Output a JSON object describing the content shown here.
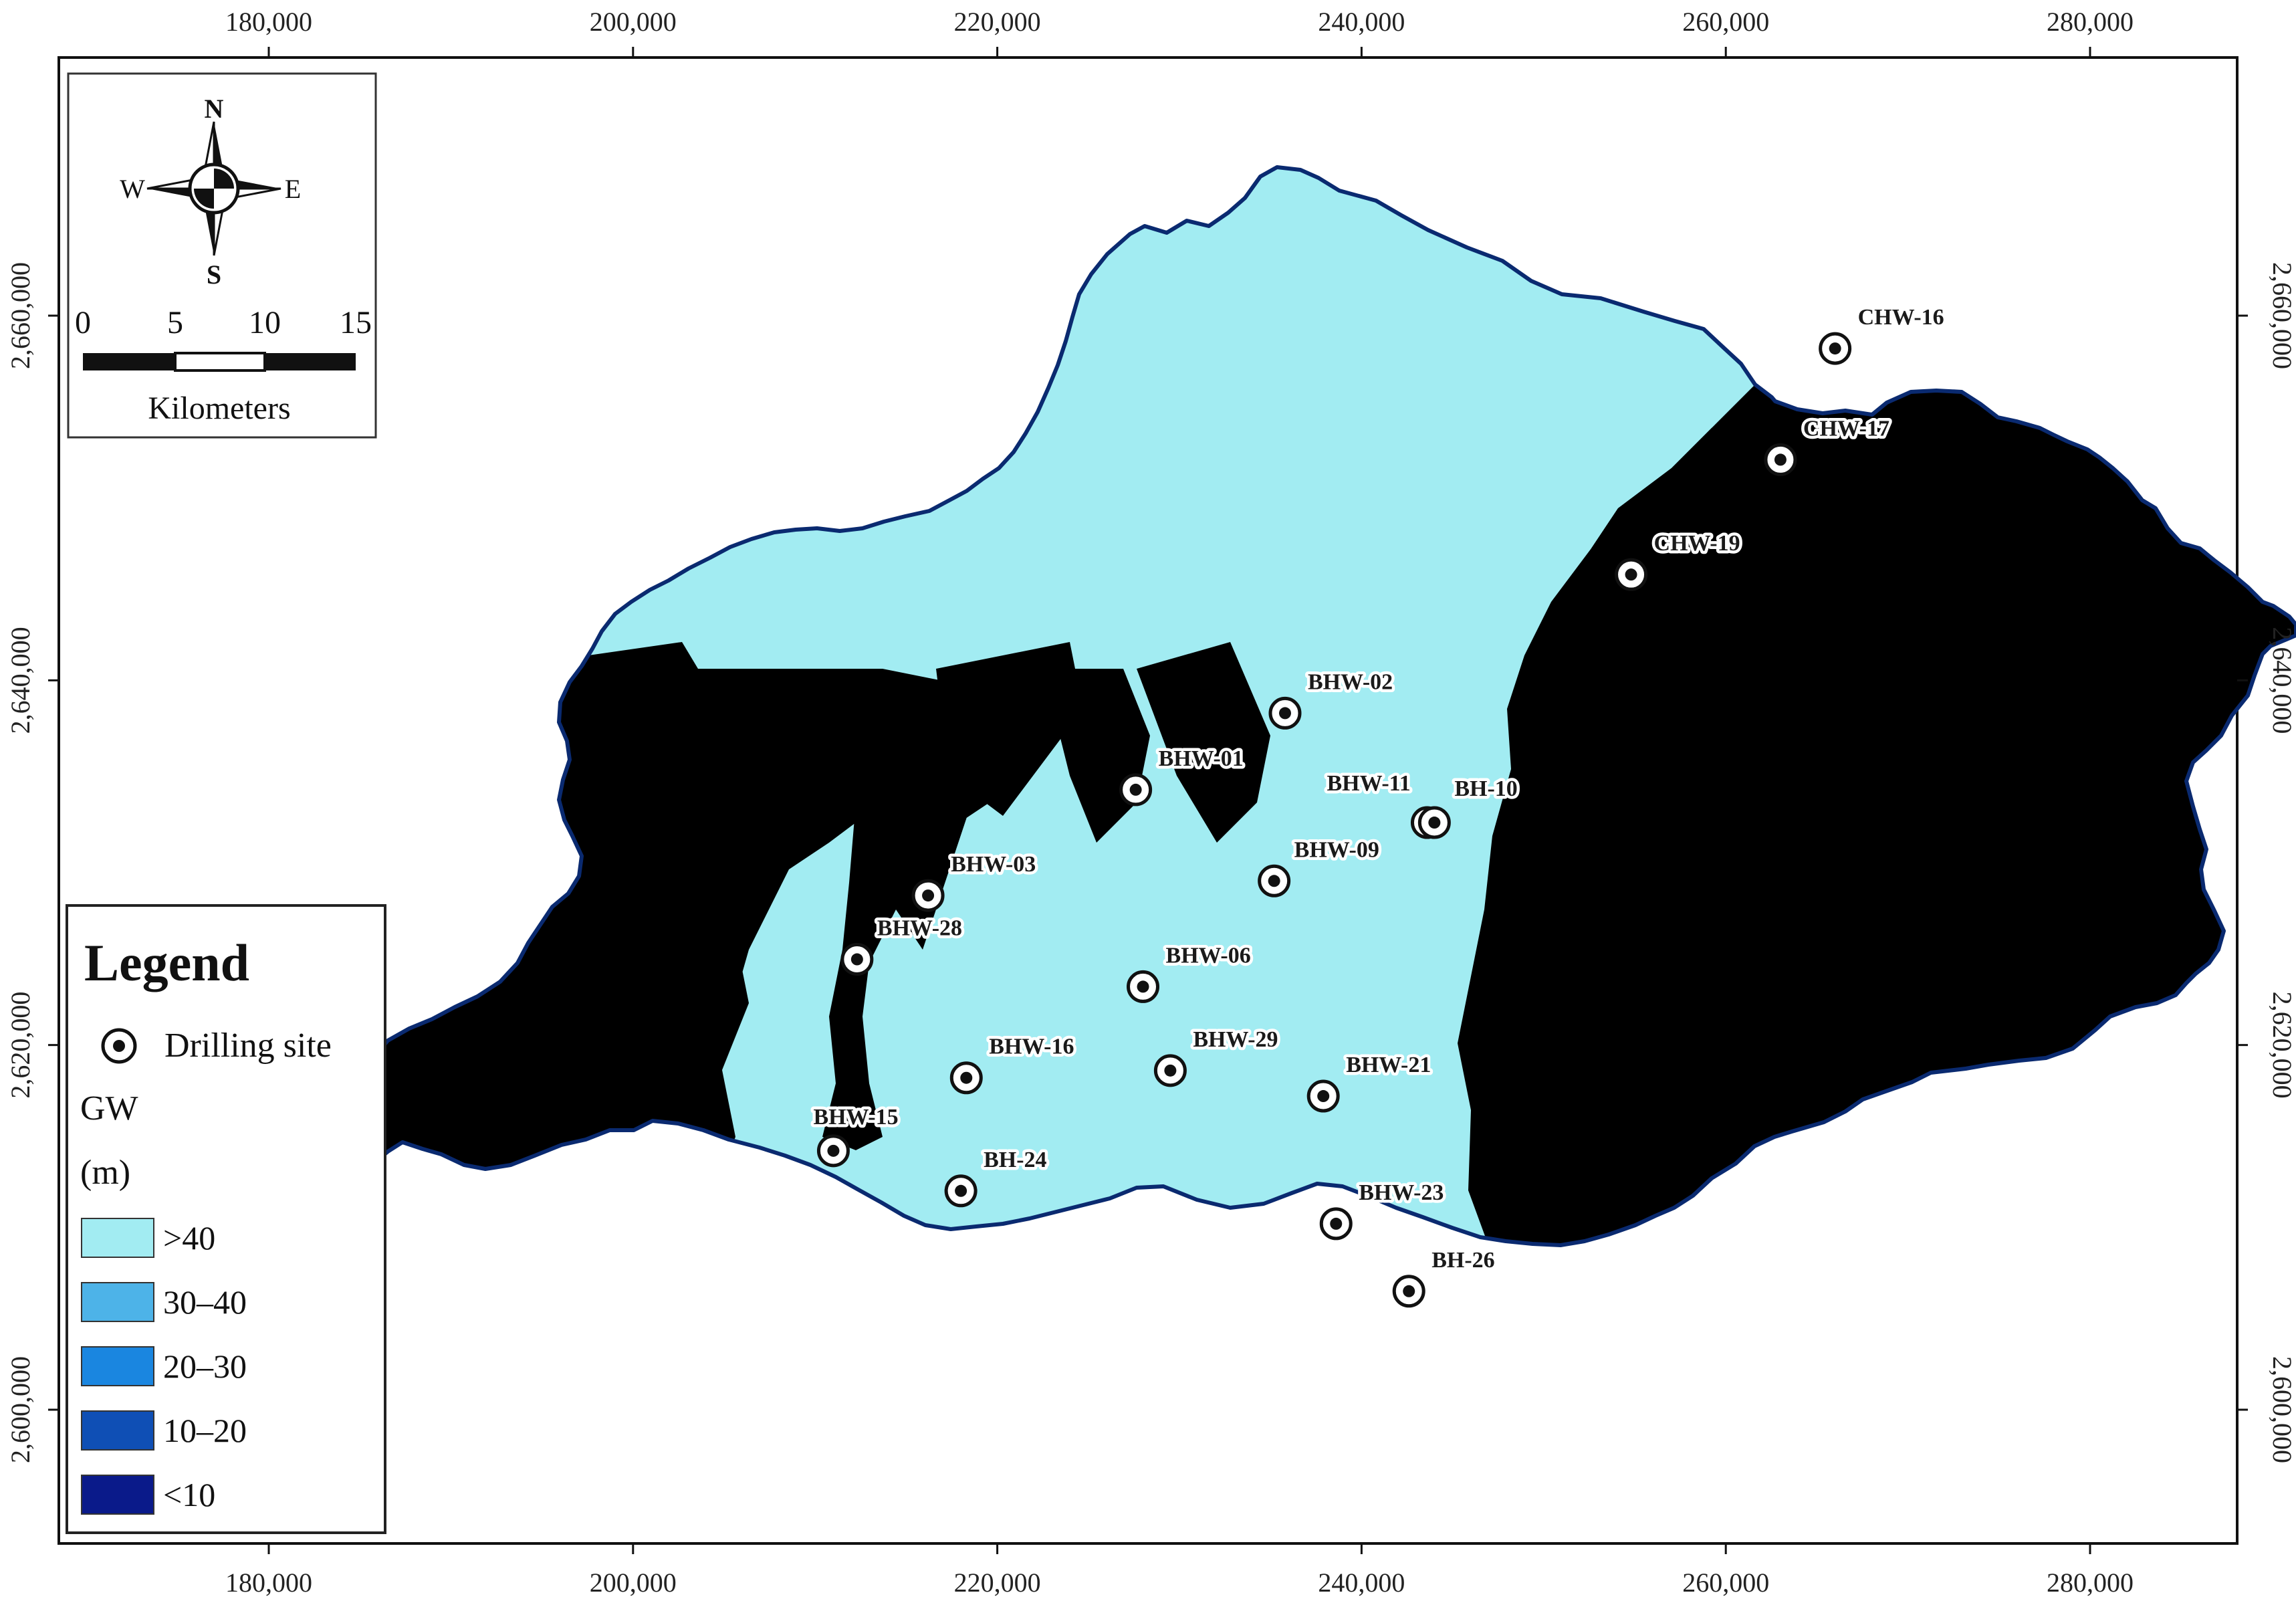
{
  "axes": {
    "x_ticks": [
      "180,000",
      "200,000",
      "220,000",
      "240,000",
      "260,000",
      "280,000"
    ],
    "y_ticks": [
      "2,660,000",
      "2,640,000",
      "2,620,000",
      "2,600,000"
    ]
  },
  "north_arrow": {
    "n": "N",
    "s": "S",
    "e": "E",
    "w": "W"
  },
  "scale_bar": {
    "ticks": [
      "0",
      "5",
      "10",
      "15"
    ],
    "unit": "Kilometers"
  },
  "legend": {
    "title": "Legend",
    "site_label": "Drilling site",
    "gw_title": "GW",
    "gw_unit": "(m)",
    "classes": [
      {
        "label": ">40",
        "color": "#a2ecf2"
      },
      {
        "label": "30–40",
        "color": "#4db3e8"
      },
      {
        "label": "20–30",
        "color": "#1a86e0"
      },
      {
        "label": "10–20",
        "color": "#0f4fb5"
      },
      {
        "label": "<10",
        "color": "#0a1a8a"
      }
    ]
  },
  "sites": [
    {
      "name": "CHW-16",
      "x": 266000,
      "y": 2658200
    },
    {
      "name": "CHW-17",
      "x": 263000,
      "y": 2652100
    },
    {
      "name": "CHW-19",
      "x": 254800,
      "y": 2645800
    },
    {
      "name": "BHW-02",
      "x": 235800,
      "y": 2638200
    },
    {
      "name": "BHW-01",
      "x": 227600,
      "y": 2634000
    },
    {
      "name": "BHW-11",
      "x": 243600,
      "y": 2632200
    },
    {
      "name": "BH-10",
      "x": 244000,
      "y": 2632200
    },
    {
      "name": "BHW-09",
      "x": 235200,
      "y": 2629000
    },
    {
      "name": "BHW-03",
      "x": 216200,
      "y": 2628200
    },
    {
      "name": "BHW-28",
      "x": 212300,
      "y": 2624700
    },
    {
      "name": "BHW-06",
      "x": 228000,
      "y": 2623200
    },
    {
      "name": "BHW-16",
      "x": 218300,
      "y": 2618200
    },
    {
      "name": "BHW-29",
      "x": 229500,
      "y": 2618600
    },
    {
      "name": "BHW-21",
      "x": 237900,
      "y": 2617200
    },
    {
      "name": "BHW-15",
      "x": 211000,
      "y": 2614200
    },
    {
      "name": "BH-24",
      "x": 218000,
      "y": 2612000
    },
    {
      "name": "BHW-23",
      "x": 238600,
      "y": 2610200
    },
    {
      "name": "BH-26",
      "x": 242600,
      "y": 2606500
    }
  ]
}
